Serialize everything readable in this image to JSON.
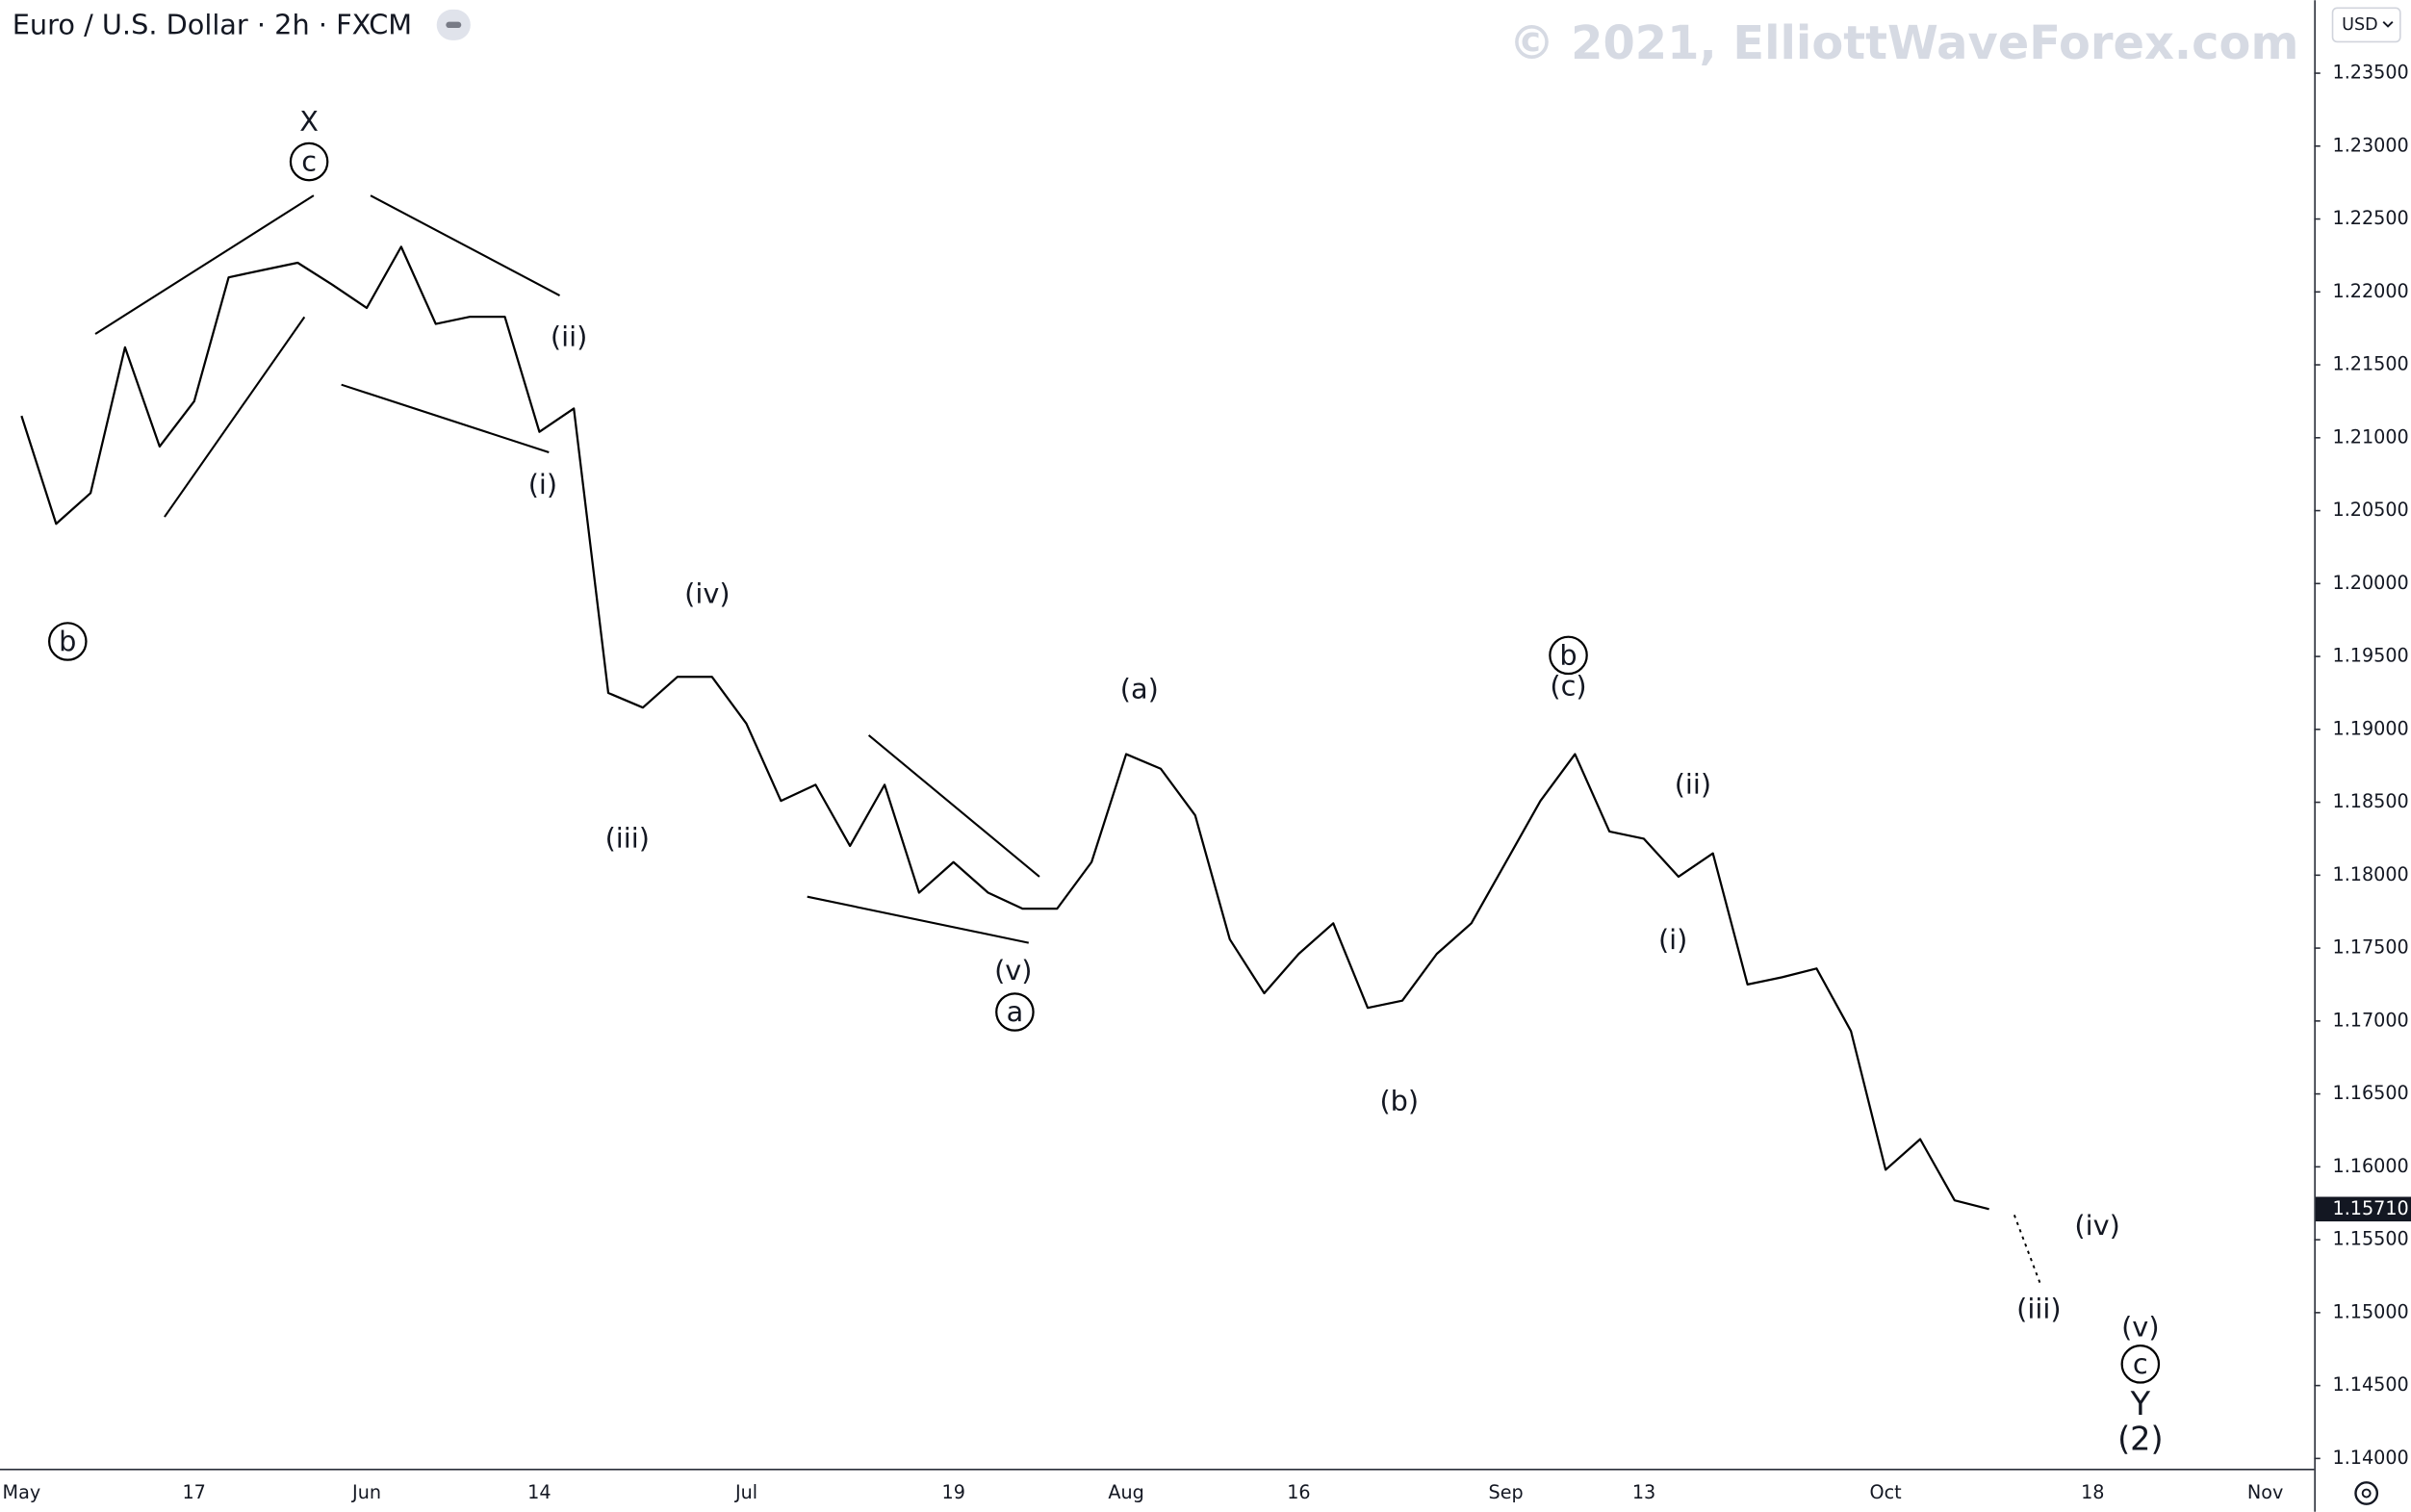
{
  "chart_data": {
    "type": "line",
    "title": "Euro / U.S. Dollar · 2h · FXCM",
    "watermark": "© 2021, ElliottWaveForex.com",
    "currency": "USD",
    "color": "#000000",
    "categories": [
      "May",
      null,
      null,
      null,
      null,
      "17",
      null,
      null,
      null,
      null,
      "Jun",
      null,
      null,
      null,
      null,
      "14",
      null,
      null,
      null,
      null,
      null,
      "Jul",
      null,
      null,
      null,
      null,
      null,
      "19",
      null,
      null,
      null,
      null,
      "Aug",
      null,
      null,
      null,
      null,
      "16",
      null,
      null,
      null,
      null,
      null,
      "Sep",
      null,
      null,
      null,
      "13",
      null,
      null,
      null,
      null,
      null,
      null,
      "Oct",
      null,
      null,
      null,
      null,
      null,
      "18",
      null,
      null,
      null,
      null,
      "Nov"
    ],
    "values": [
      1.2115,
      1.2041,
      1.2062,
      1.2162,
      1.2094,
      1.2125,
      1.221,
      1.2215,
      1.222,
      1.2205,
      1.2189,
      1.2231,
      1.2178,
      1.2183,
      1.2183,
      1.2104,
      1.212,
      1.1925,
      1.1915,
      1.1936,
      1.1936,
      1.1904,
      1.1851,
      1.1862,
      1.182,
      1.1862,
      1.1788,
      1.1809,
      1.1788,
      1.1777,
      1.1777,
      1.1809,
      1.1883,
      1.1873,
      1.1841,
      1.1756,
      1.1719,
      1.1746,
      1.1767,
      1.1709,
      1.1714,
      1.1746,
      1.1767,
      1.1809,
      1.1851,
      1.1883,
      1.183,
      1.1825,
      1.1799,
      1.1815,
      1.1725,
      1.173,
      1.1736,
      1.1693,
      1.1598,
      1.1619,
      1.1577,
      1.1571,
      null,
      null,
      null,
      null,
      null,
      null,
      null,
      null
    ],
    "last_price": {
      "value": 1.1571,
      "label": "1.15710"
    },
    "ylim": [
      1.1393,
      1.24
    ],
    "yticks": [
      {
        "value": 1.14,
        "label": "1.14000"
      },
      {
        "value": 1.145,
        "label": "1.14500"
      },
      {
        "value": 1.15,
        "label": "1.15000"
      },
      {
        "value": 1.155,
        "label": "1.15500"
      },
      {
        "value": 1.16,
        "label": "1.16000"
      },
      {
        "value": 1.165,
        "label": "1.16500"
      },
      {
        "value": 1.17,
        "label": "1.17000"
      },
      {
        "value": 1.175,
        "label": "1.17500"
      },
      {
        "value": 1.18,
        "label": "1.18000"
      },
      {
        "value": 1.185,
        "label": "1.18500"
      },
      {
        "value": 1.19,
        "label": "1.19000"
      },
      {
        "value": 1.195,
        "label": "1.19500"
      },
      {
        "value": 1.2,
        "label": "1.20000"
      },
      {
        "value": 1.205,
        "label": "1.20500"
      },
      {
        "value": 1.21,
        "label": "1.21000"
      },
      {
        "value": 1.215,
        "label": "1.21500"
      },
      {
        "value": 1.22,
        "label": "1.22000"
      },
      {
        "value": 1.225,
        "label": "1.22500"
      },
      {
        "value": 1.23,
        "label": "1.23000"
      },
      {
        "value": 1.235,
        "label": "1.23500"
      }
    ],
    "annotations": [
      "X",
      "c",
      "b",
      "(ii)",
      "(i)",
      "(iv)",
      "(iii)",
      "(v)",
      "a",
      "(a)",
      "b",
      "(c)",
      "(b)",
      "(ii)",
      "(i)",
      "(iv)",
      "(iii)",
      "(v)",
      "c",
      "Y",
      "(2)"
    ]
  }
}
